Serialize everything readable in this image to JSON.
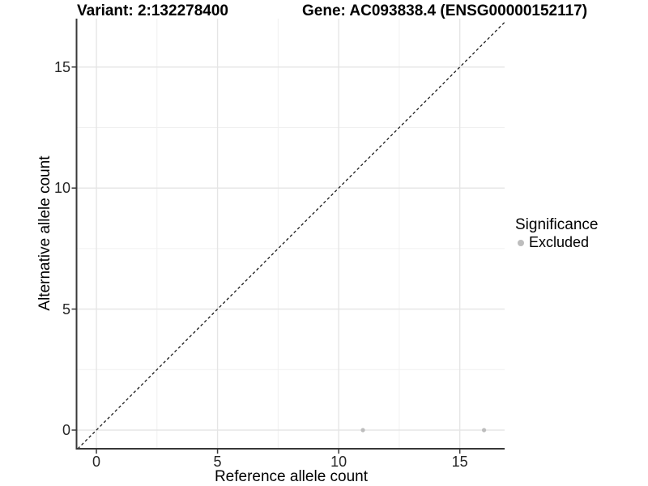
{
  "chart_data": {
    "type": "scatter",
    "title_left": "Variant: 2:132278400",
    "title_right": "Gene: AC093838.4 (ENSG00000152117)",
    "xlabel": "Reference allele count",
    "ylabel": "Alternative allele count",
    "xlim": [
      -0.82,
      16.85
    ],
    "ylim": [
      -0.77,
      17.0
    ],
    "x_ticks": [
      0,
      5,
      10,
      15
    ],
    "y_ticks": [
      0,
      5,
      10,
      15
    ],
    "x_minor_ticks": [
      2.5,
      7.5,
      12.5
    ],
    "y_minor_ticks": [
      2.5,
      7.5,
      12.5
    ],
    "grid": true,
    "legend": {
      "title": "Significance",
      "position": "right",
      "items": [
        {
          "label": "Excluded",
          "color": "#bdbdbd"
        }
      ]
    },
    "series": [
      {
        "name": "Excluded",
        "color": "#bdbdbd",
        "points": [
          {
            "x": 11,
            "y": 0
          },
          {
            "x": 16,
            "y": 0
          }
        ]
      }
    ],
    "identity_line": {
      "equation": "y = x",
      "style": "dashed",
      "color": "#1a1a1a"
    },
    "colors": {
      "background": "#ffffff",
      "axis_line": "#383838",
      "tick_mark": "#383838",
      "grid_major": "#e5e5e5",
      "grid_minor": "#f0f0f0",
      "point": "#bdbdbd",
      "tick_text": "#262626"
    }
  }
}
